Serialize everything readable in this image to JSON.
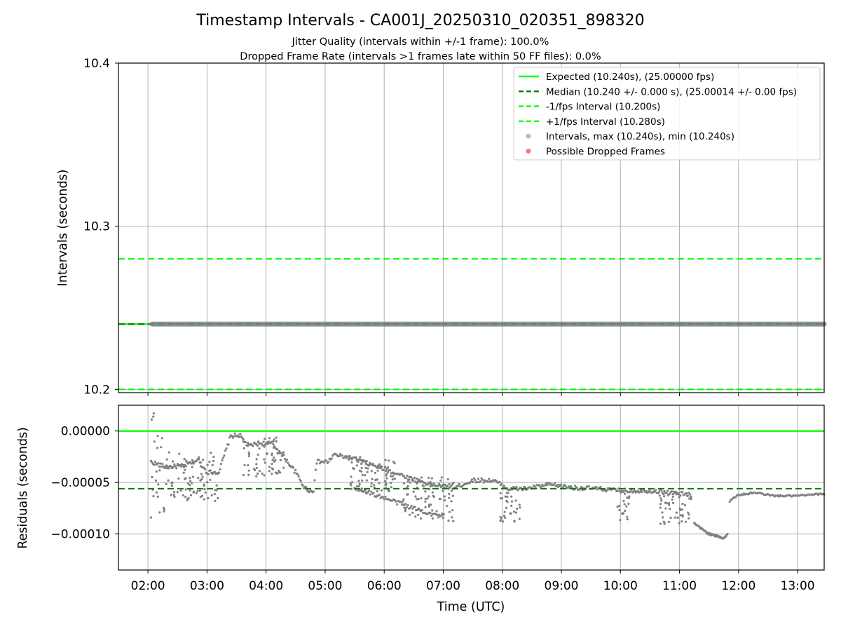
{
  "chart_data": {
    "type": "scatter",
    "title": "Timestamp Intervals - CA001J_20250310_020351_898320",
    "subtitle_lines": [
      "Jitter Quality (intervals within +/-1 frame): 100.0%",
      "Dropped Frame Rate (intervals >1 frames late within 50 FF files): 0.0%"
    ],
    "xlabel": "Time (UTC)",
    "x_ticks": [
      "02:00",
      "03:00",
      "04:00",
      "05:00",
      "06:00",
      "07:00",
      "08:00",
      "09:00",
      "10:00",
      "11:00",
      "12:00",
      "13:00"
    ],
    "x_range_hours": [
      1.5,
      13.45
    ],
    "grid": true,
    "legend_position": "upper-right",
    "top_panel": {
      "ylabel": "Intervals (seconds)",
      "ylim": [
        10.198,
        10.4
      ],
      "y_ticks": [
        "10.2",
        "10.3",
        "10.4"
      ],
      "expected": 10.24,
      "median": 10.24,
      "minus_interval": 10.2,
      "plus_interval": 10.28,
      "intervals_value": 10.24,
      "intervals_x_range": [
        2.07,
        13.45
      ]
    },
    "bottom_panel": {
      "ylabel": "Residuals (seconds)",
      "ylim": [
        -0.000135,
        2.5e-05
      ],
      "y_ticks": [
        "0.00000",
        "−0.00005",
        "−0.00010"
      ],
      "expected_residual": 0.0,
      "median_residual": -5.6e-05,
      "residual_profile": [
        [
          2.05,
          -3e-05
        ],
        [
          2.3,
          -3.5e-05
        ],
        [
          2.6,
          -3.4e-05
        ],
        [
          2.85,
          -2.8e-05
        ],
        [
          3.0,
          -4e-05
        ],
        [
          3.2,
          -4e-05
        ],
        [
          3.4,
          -5e-06
        ],
        [
          3.55,
          -4e-06
        ],
        [
          3.7,
          -1.5e-05
        ],
        [
          3.85,
          -1.2e-05
        ],
        [
          4.1,
          -1.2e-05
        ],
        [
          4.3,
          -2.5e-05
        ],
        [
          4.5,
          -4e-05
        ],
        [
          4.65,
          -5.5e-05
        ],
        [
          4.8,
          -6e-05
        ],
        [
          4.85,
          -3e-05
        ],
        [
          5.05,
          -3e-05
        ],
        [
          5.15,
          -2.3e-05
        ],
        [
          5.5,
          -2.7e-05
        ],
        [
          5.9,
          -3.5e-05
        ],
        [
          6.4,
          -4.5e-05
        ],
        [
          6.8,
          -5.2e-05
        ],
        [
          7.2,
          -5.5e-05
        ],
        [
          7.5,
          -4.8e-05
        ],
        [
          7.85,
          -4.8e-05
        ],
        [
          8.1,
          -5.6e-05
        ],
        [
          8.4,
          -5.6e-05
        ],
        [
          8.8,
          -5.2e-05
        ],
        [
          9.2,
          -5.5e-05
        ],
        [
          9.6,
          -5.6e-05
        ],
        [
          10.0,
          -5.8e-05
        ],
        [
          10.5,
          -5.8e-05
        ],
        [
          11.2,
          -6.2e-05
        ]
      ],
      "residual_lower_branch": [
        [
          5.5,
          -5.5e-05
        ],
        [
          6.0,
          -6.5e-05
        ],
        [
          6.5,
          -7.5e-05
        ],
        [
          7.0,
          -8.4e-05
        ]
      ],
      "residual_decline": [
        [
          11.25,
          -9e-05
        ],
        [
          11.5,
          -0.0001
        ],
        [
          11.75,
          -0.000104
        ],
        [
          11.82,
          -0.0001
        ]
      ],
      "residual_recovery": [
        [
          11.85,
          -6.8e-05
        ],
        [
          12.0,
          -6.2e-05
        ],
        [
          12.3,
          -6e-05
        ],
        [
          12.6,
          -6.3e-05
        ],
        [
          13.0,
          -6.3e-05
        ],
        [
          13.45,
          -6.1e-05
        ]
      ],
      "scatter_clusters": [
        [
          2.05,
          2.3,
          -9.5e-05,
          2e-05
        ],
        [
          2.3,
          3.2,
          -7e-05,
          -2e-05
        ],
        [
          3.6,
          4.3,
          -4.5e-05,
          -5e-06
        ],
        [
          5.4,
          6.2,
          -6e-05,
          -2.5e-05
        ],
        [
          6.3,
          7.2,
          -8.8e-05,
          -4.5e-05
        ],
        [
          7.95,
          8.3,
          -8.8e-05,
          -6e-05
        ],
        [
          9.95,
          10.15,
          -8.8e-05,
          -6e-05
        ],
        [
          10.65,
          11.2,
          -9.2e-05,
          -6e-05
        ]
      ]
    },
    "legend": [
      {
        "label": "Expected (10.240s), (25.00000 fps)",
        "style": "solid",
        "color": "#00ff00"
      },
      {
        "label": "Median (10.240 +/- 0.000 s), (25.00014 +/- 0.00 fps)",
        "style": "dashed",
        "color": "#008000"
      },
      {
        "label": "-1/fps Interval (10.200s)",
        "style": "dashed",
        "color": "#00ff00"
      },
      {
        "label": "+1/fps Interval (10.280s)",
        "style": "dashed",
        "color": "#00ff00"
      },
      {
        "label": "Intervals, max (10.240s), min (10.240s)",
        "style": "point",
        "color": "#808080"
      },
      {
        "label": "Possible Dropped Frames",
        "style": "point",
        "color": "#ff0000"
      }
    ],
    "colors": {
      "expected": "#00ff00",
      "median": "#008000",
      "interval_bounds": "#00ff00",
      "points": "#808080",
      "dropped": "#ff0000",
      "grid": "#b0b0b0"
    }
  }
}
